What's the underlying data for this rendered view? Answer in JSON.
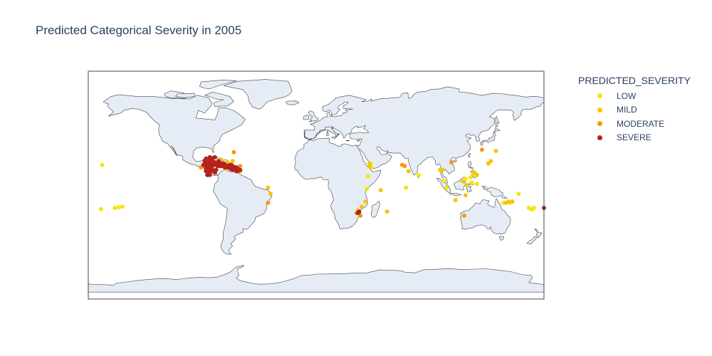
{
  "title": "Predicted Categorical Severity in 2005",
  "legend": {
    "title": "PREDICTED_SEVERITY",
    "items": [
      {
        "label": "LOW",
        "color": "#f5e50c"
      },
      {
        "label": "MILD",
        "color": "#f9c30a"
      },
      {
        "label": "MODERATE",
        "color": "#f59a06"
      },
      {
        "label": "SEVERE",
        "color": "#b5221f"
      }
    ]
  },
  "map": {
    "projection": "equirectangular",
    "land_color": "#e5ecf6",
    "coast_color": "#444444",
    "frame_color": "#444444"
  },
  "chart_data": {
    "type": "scatter",
    "legend_placement": "right",
    "series": [
      {
        "name": "LOW",
        "color": "#f5e50c",
        "points": [
          [
            -169,
            16
          ],
          [
            -170,
            -19
          ],
          [
            -159,
            -18
          ],
          [
            -156,
            -17.5
          ],
          [
            -153,
            -17
          ],
          [
            43,
            17
          ],
          [
            44,
            14
          ],
          [
            41,
            7
          ],
          [
            40,
            -3
          ],
          [
            71,
            -2
          ],
          [
            81,
            8
          ],
          [
            103,
            -2
          ],
          [
            118,
            5
          ],
          [
            127,
            1
          ],
          [
            122,
            6
          ],
          [
            123,
            2
          ],
          [
            124,
            9
          ],
          [
            168,
            -18
          ],
          [
            170,
            -19
          ],
          [
            171,
            -19
          ],
          [
            172,
            -18
          ],
          [
            160,
            -7
          ],
          [
            148,
            -14
          ],
          [
            153,
            -14
          ],
          [
            101,
            3
          ]
        ]
      },
      {
        "name": "MILD",
        "color": "#f9c30a",
        "points": [
          [
            42,
            15
          ],
          [
            42,
            17
          ],
          [
            51,
            -4
          ],
          [
            56,
            -21
          ],
          [
            39,
            -13
          ],
          [
            36,
            -17
          ],
          [
            33,
            -20
          ],
          [
            73,
            11
          ],
          [
            98,
            12
          ],
          [
            100,
            12
          ],
          [
            110,
            -12
          ],
          [
            119,
            0
          ],
          [
            125,
            10
          ],
          [
            118,
            -8
          ],
          [
            127,
            8
          ],
          [
            116,
            3
          ],
          [
            152,
            -13
          ],
          [
            136,
            17
          ],
          [
            150,
            -14
          ],
          [
            155,
            -13
          ],
          [
            138,
            19
          ],
          [
            -36,
            -7
          ],
          [
            -38,
            -2
          ],
          [
            -80,
            16
          ],
          [
            -66,
            19
          ],
          [
            -70,
            18
          ],
          [
            -62,
            13
          ],
          [
            -60,
            11
          ],
          [
            -64,
            12
          ],
          [
            -85,
            21
          ],
          [
            -75,
            20
          ],
          [
            -72,
            13
          ],
          [
            142,
            27
          ]
        ]
      },
      {
        "name": "MODERATE",
        "color": "#f59a06",
        "points": [
          [
            -65,
            26
          ],
          [
            -38,
            -14
          ],
          [
            -60,
            15
          ],
          [
            -76,
            16
          ],
          [
            -88,
            15
          ],
          [
            -80,
            12
          ],
          [
            -66,
            15
          ],
          [
            -70,
            16
          ],
          [
            -91,
            14
          ],
          [
            -86,
            18
          ],
          [
            117,
            -24
          ],
          [
            68,
            16
          ],
          [
            70,
            15
          ],
          [
            35,
            -24
          ],
          [
            32,
            -22
          ],
          [
            107,
            18
          ],
          [
            131,
            28
          ],
          [
            -72,
            16
          ]
        ]
      },
      {
        "name": "SEVERE",
        "color": "#b5221f",
        "points": [
          [
            -87,
            17
          ],
          [
            -86,
            15
          ],
          [
            -86,
            16
          ],
          [
            -84,
            15
          ],
          [
            -84,
            17
          ],
          [
            -83,
            16
          ],
          [
            -82,
            19
          ],
          [
            -80,
            18
          ],
          [
            -80,
            17
          ],
          [
            -78,
            17
          ],
          [
            -77,
            19
          ],
          [
            -75,
            17
          ],
          [
            -73,
            17
          ],
          [
            -72,
            16
          ],
          [
            -71,
            15
          ],
          [
            -70,
            15
          ],
          [
            -68,
            16
          ],
          [
            -67,
            16
          ],
          [
            -66,
            15
          ],
          [
            -65,
            14
          ],
          [
            -64,
            14
          ],
          [
            -63,
            14
          ],
          [
            -62,
            13
          ],
          [
            -63,
            11
          ],
          [
            -64,
            12
          ],
          [
            -65,
            12
          ],
          [
            -66,
            12
          ],
          [
            -67,
            13
          ],
          [
            -68,
            13
          ],
          [
            -69,
            14
          ],
          [
            -85,
            16
          ],
          [
            -84,
            14
          ],
          [
            -82,
            15
          ],
          [
            -81,
            16
          ],
          [
            -82,
            12
          ],
          [
            -83,
            11
          ],
          [
            -86,
            12
          ],
          [
            -87,
            11
          ],
          [
            -85,
            10
          ],
          [
            -80,
            10
          ],
          [
            -79,
            12
          ],
          [
            -81,
            18
          ],
          [
            -84,
            19
          ],
          [
            -86,
            20
          ],
          [
            -87,
            21
          ],
          [
            -84,
            22
          ],
          [
            -82,
            21
          ],
          [
            -80,
            22
          ],
          [
            -87,
            13
          ],
          [
            -88,
            19
          ],
          [
            -85,
            13
          ],
          [
            -78,
            15
          ],
          [
            -76,
            15
          ],
          [
            -74,
            15
          ],
          [
            -72,
            14
          ],
          [
            -70,
            14
          ],
          [
            -68,
            14
          ],
          [
            -66,
            14
          ],
          [
            -64,
            13
          ],
          [
            -62,
            12
          ],
          [
            -60,
            12
          ],
          [
            -62,
            11
          ],
          [
            -89,
            16
          ],
          [
            -88,
            17
          ],
          [
            33,
            -22
          ],
          [
            34,
            -21
          ],
          [
            180,
            -18
          ],
          [
            -86,
            8
          ],
          [
            -84,
            8
          ],
          [
            -85,
            9
          ]
        ]
      }
    ]
  }
}
